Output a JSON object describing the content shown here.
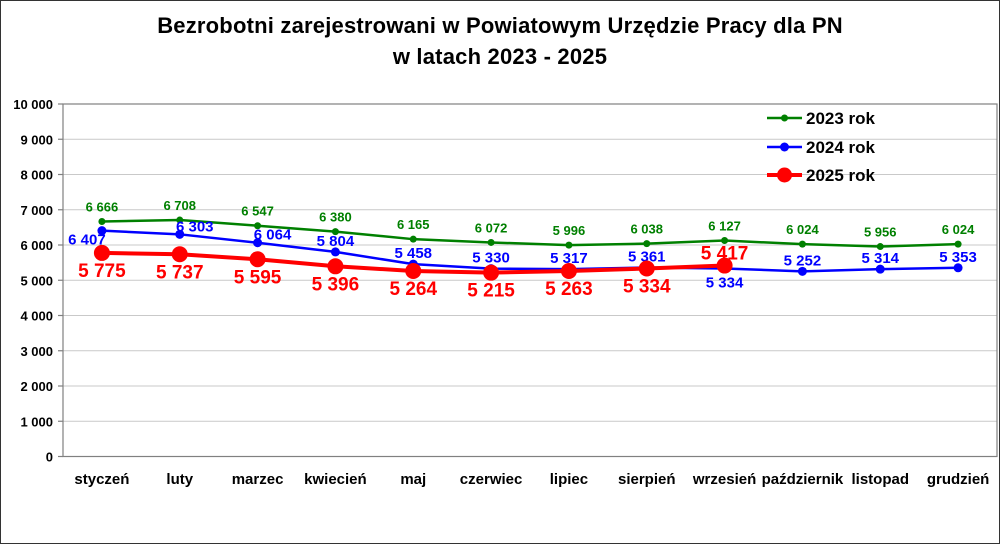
{
  "chart_data": {
    "type": "line",
    "title_line1": "Bezrobotni zarejestrowani w Powiatowym Urzędzie Pracy dla PN",
    "title_line2": "w latach 2023 - 2025",
    "categories": [
      "styczeń",
      "luty",
      "marzec",
      "kwiecień",
      "maj",
      "czerwiec",
      "lipiec",
      "sierpień",
      "wrzesień",
      "październik",
      "listopad",
      "grudzień"
    ],
    "series": [
      {
        "name": "2023 rok",
        "color": "#008000",
        "values": [
          6666,
          6708,
          6547,
          6380,
          6165,
          6072,
          5996,
          6038,
          6127,
          6024,
          5956,
          6024
        ]
      },
      {
        "name": "2024 rok",
        "color": "#0000FF",
        "values": [
          6407,
          6303,
          6064,
          5804,
          5458,
          5330,
          5317,
          5361,
          5334,
          5252,
          5314,
          5353
        ]
      },
      {
        "name": "2025 rok",
        "color": "#FF0000",
        "values": [
          5775,
          5737,
          5595,
          5396,
          5264,
          5215,
          5263,
          5334,
          5417
        ]
      }
    ],
    "ylim": [
      0,
      10000
    ],
    "ytick_step": 1000,
    "ytick_labels": [
      "0",
      "1 000",
      "2 000",
      "3 000",
      "4 000",
      "5 000",
      "6 000",
      "7 000",
      "8 000",
      "9 000",
      "10 000"
    ],
    "grid": "horizontal",
    "legend_position": "top-right",
    "data_labels": true,
    "label_placement_default": {
      "2023 rok": "above",
      "2024 rok": "above",
      "2025 rok": "below"
    },
    "label_exceptions": [
      {
        "series": "2024 rok",
        "index": 0,
        "placement": "below"
      },
      {
        "series": "2024 rok",
        "index": 8,
        "placement": "below"
      },
      {
        "series": "2025 rok",
        "index": 8,
        "placement": "above"
      }
    ]
  },
  "colors": {
    "gridline": "#c9c9c9",
    "frame": "#808080",
    "text": "#000000",
    "background": "#ffffff"
  }
}
